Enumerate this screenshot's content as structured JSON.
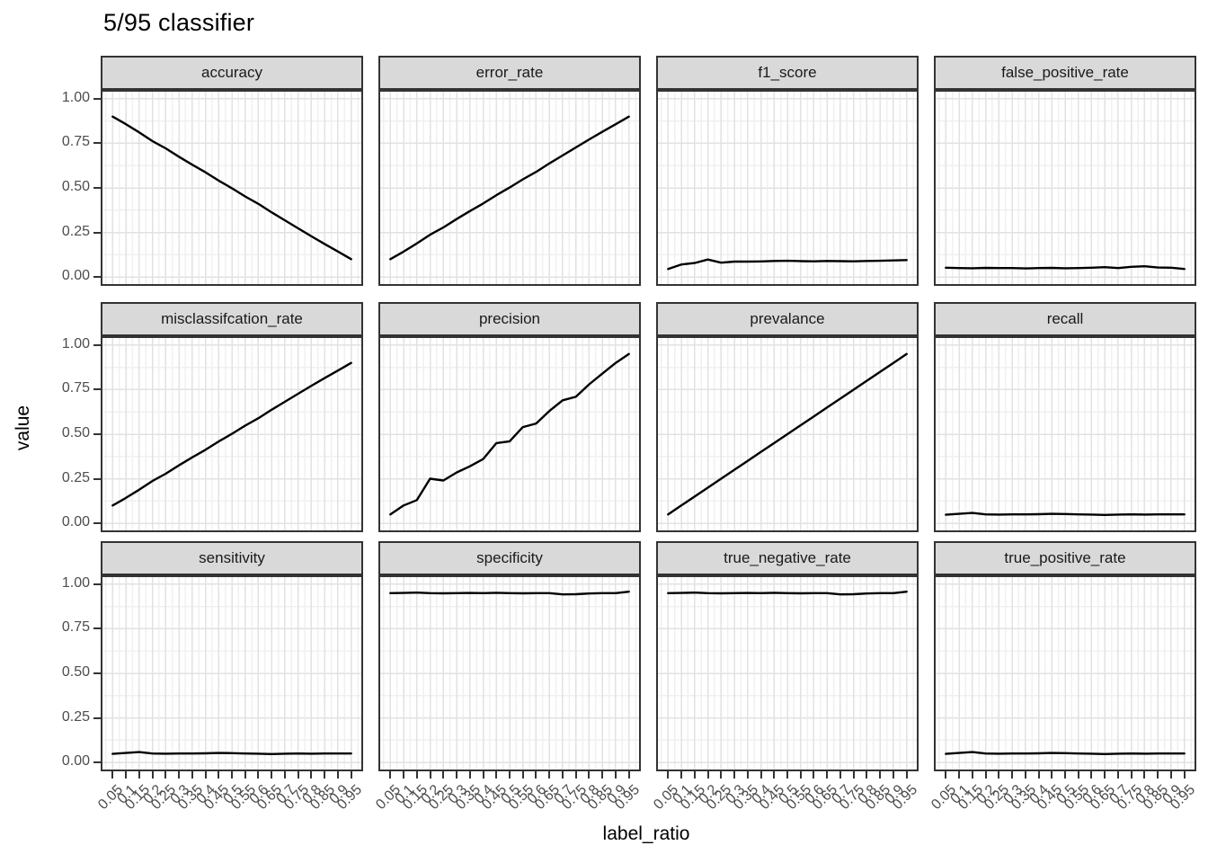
{
  "figure": {
    "title": "5/95 classifier",
    "x_axis_title": "label_ratio",
    "y_axis_title": "value"
  },
  "colors": {
    "strip_bg": "#d9d9d9",
    "strip_border": "#333333",
    "panel_border": "#333333",
    "panel_bg": "#ffffff",
    "grid_major": "#e2e2e2",
    "grid_minor": "#f0f0f0",
    "line": "#000000",
    "tick_mark": "#333333",
    "tick_text": "#4d4d4d"
  },
  "chart_data": {
    "type": "line",
    "title": "5/95 classifier",
    "xlabel": "label_ratio",
    "ylabel": "value",
    "ylim": [
      0,
      1
    ],
    "grid": true,
    "legend_position": "none",
    "facet_layout": {
      "rows": 3,
      "cols": 4
    },
    "x": [
      0.05,
      0.1,
      0.15,
      0.2,
      0.25,
      0.3,
      0.35,
      0.4,
      0.45,
      0.5,
      0.55,
      0.6,
      0.65,
      0.7,
      0.75,
      0.8,
      0.85,
      0.9,
      0.95
    ],
    "x_tick_labels": [
      "0.05",
      "0.1",
      "0.15",
      "0.2",
      "0.25",
      "0.3",
      "0.35",
      "0.4",
      "0.45",
      "0.5",
      "0.55",
      "0.6",
      "0.65",
      "0.7",
      "0.75",
      "0.8",
      "0.85",
      "0.9",
      "0.95"
    ],
    "y_tick_labels": [
      "0.00",
      "0.25",
      "0.50",
      "0.75",
      "1.00"
    ],
    "y_tick_values": [
      0,
      0.25,
      0.5,
      0.75,
      1
    ],
    "facets": [
      {
        "label": "accuracy",
        "values": [
          0.9,
          0.858,
          0.812,
          0.763,
          0.722,
          0.675,
          0.63,
          0.588,
          0.541,
          0.498,
          0.452,
          0.41,
          0.363,
          0.318,
          0.273,
          0.228,
          0.185,
          0.143,
          0.1
        ]
      },
      {
        "label": "error_rate",
        "values": [
          0.1,
          0.142,
          0.188,
          0.237,
          0.278,
          0.325,
          0.37,
          0.412,
          0.459,
          0.502,
          0.548,
          0.59,
          0.637,
          0.682,
          0.727,
          0.772,
          0.815,
          0.857,
          0.9
        ]
      },
      {
        "label": "f1_score",
        "values": [
          0.045,
          0.07,
          0.078,
          0.098,
          0.08,
          0.086,
          0.086,
          0.087,
          0.09,
          0.091,
          0.089,
          0.088,
          0.09,
          0.089,
          0.088,
          0.09,
          0.091,
          0.093,
          0.095
        ]
      },
      {
        "label": "false_positive_rate",
        "values": [
          0.052,
          0.05,
          0.049,
          0.051,
          0.05,
          0.05,
          0.048,
          0.05,
          0.051,
          0.049,
          0.05,
          0.052,
          0.055,
          0.05,
          0.057,
          0.06,
          0.053,
          0.052,
          0.045
        ]
      },
      {
        "label": "misclassifcation_rate",
        "values": [
          0.1,
          0.142,
          0.188,
          0.237,
          0.278,
          0.325,
          0.37,
          0.412,
          0.459,
          0.502,
          0.548,
          0.59,
          0.637,
          0.682,
          0.727,
          0.772,
          0.815,
          0.857,
          0.9
        ]
      },
      {
        "label": "precision",
        "values": [
          0.05,
          0.1,
          0.13,
          0.25,
          0.24,
          0.285,
          0.32,
          0.36,
          0.45,
          0.46,
          0.54,
          0.56,
          0.63,
          0.69,
          0.71,
          0.78,
          0.84,
          0.9,
          0.95
        ]
      },
      {
        "label": "prevalance",
        "values": [
          0.05,
          0.1,
          0.15,
          0.2,
          0.25,
          0.3,
          0.35,
          0.4,
          0.45,
          0.5,
          0.55,
          0.6,
          0.65,
          0.7,
          0.75,
          0.8,
          0.85,
          0.9,
          0.95
        ]
      },
      {
        "label": "recall",
        "values": [
          0.048,
          0.053,
          0.058,
          0.05,
          0.049,
          0.05,
          0.05,
          0.051,
          0.053,
          0.052,
          0.05,
          0.049,
          0.047,
          0.049,
          0.05,
          0.049,
          0.05,
          0.05,
          0.05
        ]
      },
      {
        "label": "sensitivity",
        "values": [
          0.048,
          0.053,
          0.058,
          0.05,
          0.049,
          0.05,
          0.05,
          0.051,
          0.053,
          0.052,
          0.05,
          0.049,
          0.047,
          0.049,
          0.05,
          0.049,
          0.05,
          0.05,
          0.05
        ]
      },
      {
        "label": "specificity",
        "values": [
          0.95,
          0.951,
          0.953,
          0.95,
          0.949,
          0.95,
          0.951,
          0.95,
          0.952,
          0.95,
          0.949,
          0.95,
          0.95,
          0.943,
          0.944,
          0.948,
          0.95,
          0.95,
          0.958
        ]
      },
      {
        "label": "true_negative_rate",
        "values": [
          0.95,
          0.951,
          0.953,
          0.95,
          0.949,
          0.95,
          0.951,
          0.95,
          0.952,
          0.95,
          0.949,
          0.95,
          0.95,
          0.943,
          0.944,
          0.948,
          0.95,
          0.95,
          0.958
        ]
      },
      {
        "label": "true_positive_rate",
        "values": [
          0.048,
          0.053,
          0.058,
          0.05,
          0.049,
          0.05,
          0.05,
          0.051,
          0.053,
          0.052,
          0.05,
          0.049,
          0.047,
          0.049,
          0.05,
          0.049,
          0.05,
          0.05,
          0.05
        ]
      }
    ]
  }
}
